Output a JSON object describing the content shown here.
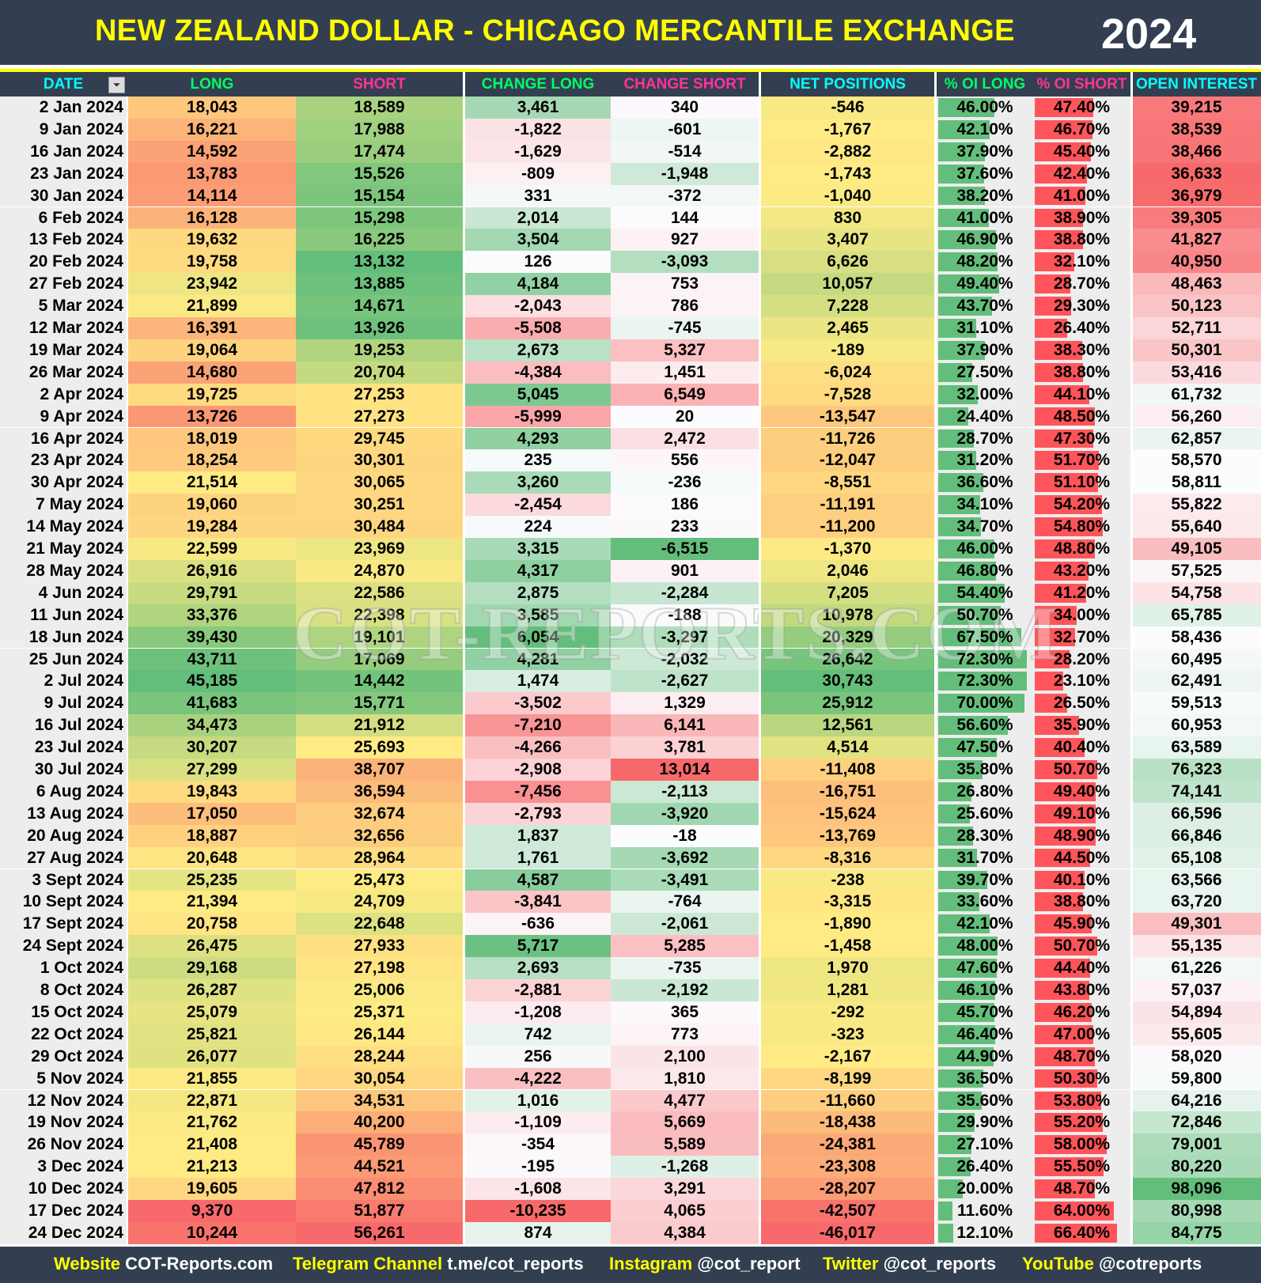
{
  "header": {
    "title": "NEW ZEALAND DOLLAR - CHICAGO MERCANTILE EXCHANGE",
    "year": "2024"
  },
  "columns": [
    {
      "label": "DATE",
      "color": "#00FFFF"
    },
    {
      "label": "LONG",
      "color": "#00FF66"
    },
    {
      "label": "SHORT",
      "color": "#FF3399"
    },
    {
      "label": "CHANGE LONG",
      "color": "#00FF66"
    },
    {
      "label": "CHANGE SHORT",
      "color": "#FF3399"
    },
    {
      "label": "NET POSITIONS",
      "color": "#00FFFF"
    },
    {
      "label": "% OI LONG",
      "color": "#00FF66"
    },
    {
      "label": "% OI SHORT",
      "color": "#FF3399"
    },
    {
      "label": "OPEN INTEREST",
      "color": "#00FFFF"
    }
  ],
  "filter_icon": "sort-filter-icon",
  "colors": {
    "red": "#F8696B",
    "yellow": "#FFEB84",
    "green": "#63BE7B",
    "white": "#FCFCFF",
    "bar_green": "#63BE7B",
    "bar_red": "#FF555A",
    "dark": "#333F50"
  },
  "rows": [
    [
      "2 Jan 2024",
      "18,043",
      "18,589",
      "3,461",
      "340",
      "-546",
      "46.00%",
      "47.40%",
      "39,215"
    ],
    [
      "9 Jan 2024",
      "16,221",
      "17,988",
      "-1,822",
      "-601",
      "-1,767",
      "42.10%",
      "46.70%",
      "38,539"
    ],
    [
      "16 Jan 2024",
      "14,592",
      "17,474",
      "-1,629",
      "-514",
      "-2,882",
      "37.90%",
      "45.40%",
      "38,466"
    ],
    [
      "23 Jan 2024",
      "13,783",
      "15,526",
      "-809",
      "-1,948",
      "-1,743",
      "37.60%",
      "42.40%",
      "36,633"
    ],
    [
      "30 Jan 2024",
      "14,114",
      "15,154",
      "331",
      "-372",
      "-1,040",
      "38.20%",
      "41.00%",
      "36,979"
    ],
    [
      "6 Feb 2024",
      "16,128",
      "15,298",
      "2,014",
      "144",
      "830",
      "41.00%",
      "38.90%",
      "39,305"
    ],
    [
      "13 Feb 2024",
      "19,632",
      "16,225",
      "3,504",
      "927",
      "3,407",
      "46.90%",
      "38.80%",
      "41,827"
    ],
    [
      "20 Feb 2024",
      "19,758",
      "13,132",
      "126",
      "-3,093",
      "6,626",
      "48.20%",
      "32.10%",
      "40,950"
    ],
    [
      "27 Feb 2024",
      "23,942",
      "13,885",
      "4,184",
      "753",
      "10,057",
      "49.40%",
      "28.70%",
      "48,463"
    ],
    [
      "5 Mar 2024",
      "21,899",
      "14,671",
      "-2,043",
      "786",
      "7,228",
      "43.70%",
      "29.30%",
      "50,123"
    ],
    [
      "12 Mar 2024",
      "16,391",
      "13,926",
      "-5,508",
      "-745",
      "2,465",
      "31.10%",
      "26.40%",
      "52,711"
    ],
    [
      "19 Mar 2024",
      "19,064",
      "19,253",
      "2,673",
      "5,327",
      "-189",
      "37.90%",
      "38.30%",
      "50,301"
    ],
    [
      "26 Mar 2024",
      "14,680",
      "20,704",
      "-4,384",
      "1,451",
      "-6,024",
      "27.50%",
      "38.80%",
      "53,416"
    ],
    [
      "2 Apr 2024",
      "19,725",
      "27,253",
      "5,045",
      "6,549",
      "-7,528",
      "32.00%",
      "44.10%",
      "61,732"
    ],
    [
      "9 Apr 2024",
      "13,726",
      "27,273",
      "-5,999",
      "20",
      "-13,547",
      "24.40%",
      "48.50%",
      "56,260"
    ],
    [
      "16 Apr 2024",
      "18,019",
      "29,745",
      "4,293",
      "2,472",
      "-11,726",
      "28.70%",
      "47.30%",
      "62,857"
    ],
    [
      "23 Apr 2024",
      "18,254",
      "30,301",
      "235",
      "556",
      "-12,047",
      "31.20%",
      "51.70%",
      "58,570"
    ],
    [
      "30 Apr 2024",
      "21,514",
      "30,065",
      "3,260",
      "-236",
      "-8,551",
      "36.60%",
      "51.10%",
      "58,811"
    ],
    [
      "7 May 2024",
      "19,060",
      "30,251",
      "-2,454",
      "186",
      "-11,191",
      "34.10%",
      "54.20%",
      "55,822"
    ],
    [
      "14 May 2024",
      "19,284",
      "30,484",
      "224",
      "233",
      "-11,200",
      "34.70%",
      "54.80%",
      "55,640"
    ],
    [
      "21 May 2024",
      "22,599",
      "23,969",
      "3,315",
      "-6,515",
      "-1,370",
      "46.00%",
      "48.80%",
      "49,105"
    ],
    [
      "28 May 2024",
      "26,916",
      "24,870",
      "4,317",
      "901",
      "2,046",
      "46.80%",
      "43.20%",
      "57,525"
    ],
    [
      "4 Jun 2024",
      "29,791",
      "22,586",
      "2,875",
      "-2,284",
      "7,205",
      "54.40%",
      "41.20%",
      "54,758"
    ],
    [
      "11 Jun 2024",
      "33,376",
      "22,398",
      "3,585",
      "-188",
      "10,978",
      "50.70%",
      "34.00%",
      "65,785"
    ],
    [
      "18 Jun 2024",
      "39,430",
      "19,101",
      "6,054",
      "-3,297",
      "20,329",
      "67.50%",
      "32.70%",
      "58,436"
    ],
    [
      "25 Jun 2024",
      "43,711",
      "17,069",
      "4,281",
      "-2,032",
      "26,642",
      "72.30%",
      "28.20%",
      "60,495"
    ],
    [
      "2 Jul 2024",
      "45,185",
      "14,442",
      "1,474",
      "-2,627",
      "30,743",
      "72.30%",
      "23.10%",
      "62,491"
    ],
    [
      "9 Jul 2024",
      "41,683",
      "15,771",
      "-3,502",
      "1,329",
      "25,912",
      "70.00%",
      "26.50%",
      "59,513"
    ],
    [
      "16 Jul 2024",
      "34,473",
      "21,912",
      "-7,210",
      "6,141",
      "12,561",
      "56.60%",
      "35.90%",
      "60,953"
    ],
    [
      "23 Jul 2024",
      "30,207",
      "25,693",
      "-4,266",
      "3,781",
      "4,514",
      "47.50%",
      "40.40%",
      "63,589"
    ],
    [
      "30 Jul 2024",
      "27,299",
      "38,707",
      "-2,908",
      "13,014",
      "-11,408",
      "35.80%",
      "50.70%",
      "76,323"
    ],
    [
      "6 Aug 2024",
      "19,843",
      "36,594",
      "-7,456",
      "-2,113",
      "-16,751",
      "26.80%",
      "49.40%",
      "74,141"
    ],
    [
      "13 Aug 2024",
      "17,050",
      "32,674",
      "-2,793",
      "-3,920",
      "-15,624",
      "25.60%",
      "49.10%",
      "66,596"
    ],
    [
      "20 Aug 2024",
      "18,887",
      "32,656",
      "1,837",
      "-18",
      "-13,769",
      "28.30%",
      "48.90%",
      "66,846"
    ],
    [
      "27 Aug 2024",
      "20,648",
      "28,964",
      "1,761",
      "-3,692",
      "-8,316",
      "31.70%",
      "44.50%",
      "65,108"
    ],
    [
      "3 Sept 2024",
      "25,235",
      "25,473",
      "4,587",
      "-3,491",
      "-238",
      "39.70%",
      "40.10%",
      "63,566"
    ],
    [
      "10 Sept 2024",
      "21,394",
      "24,709",
      "-3,841",
      "-764",
      "-3,315",
      "33.60%",
      "38.80%",
      "63,720"
    ],
    [
      "17 Sept 2024",
      "20,758",
      "22,648",
      "-636",
      "-2,061",
      "-1,890",
      "42.10%",
      "45.90%",
      "49,301"
    ],
    [
      "24 Sept 2024",
      "26,475",
      "27,933",
      "5,717",
      "5,285",
      "-1,458",
      "48.00%",
      "50.70%",
      "55,135"
    ],
    [
      "1 Oct 2024",
      "29,168",
      "27,198",
      "2,693",
      "-735",
      "1,970",
      "47.60%",
      "44.40%",
      "61,226"
    ],
    [
      "8 Oct 2024",
      "26,287",
      "25,006",
      "-2,881",
      "-2,192",
      "1,281",
      "46.10%",
      "43.80%",
      "57,037"
    ],
    [
      "15 Oct 2024",
      "25,079",
      "25,371",
      "-1,208",
      "365",
      "-292",
      "45.70%",
      "46.20%",
      "54,894"
    ],
    [
      "22 Oct 2024",
      "25,821",
      "26,144",
      "742",
      "773",
      "-323",
      "46.40%",
      "47.00%",
      "55,605"
    ],
    [
      "29 Oct 2024",
      "26,077",
      "28,244",
      "256",
      "2,100",
      "-2,167",
      "44.90%",
      "48.70%",
      "58,020"
    ],
    [
      "5 Nov 2024",
      "21,855",
      "30,054",
      "-4,222",
      "1,810",
      "-8,199",
      "36.50%",
      "50.30%",
      "59,800"
    ],
    [
      "12 Nov 2024",
      "22,871",
      "34,531",
      "1,016",
      "4,477",
      "-11,660",
      "35.60%",
      "53.80%",
      "64,216"
    ],
    [
      "19 Nov 2024",
      "21,762",
      "40,200",
      "-1,109",
      "5,669",
      "-18,438",
      "29.90%",
      "55.20%",
      "72,846"
    ],
    [
      "26 Nov 2024",
      "21,408",
      "45,789",
      "-354",
      "5,589",
      "-24,381",
      "27.10%",
      "58.00%",
      "79,001"
    ],
    [
      "3 Dec 2024",
      "21,213",
      "44,521",
      "-195",
      "-1,268",
      "-23,308",
      "26.40%",
      "55.50%",
      "80,220"
    ],
    [
      "10 Dec 2024",
      "19,605",
      "47,812",
      "-1,608",
      "3,291",
      "-28,207",
      "20.00%",
      "48.70%",
      "98,096"
    ],
    [
      "17 Dec 2024",
      "9,370",
      "51,877",
      "-10,235",
      "4,065",
      "-42,507",
      "11.60%",
      "64.00%",
      "80,998"
    ],
    [
      "24 Dec 2024",
      "10,244",
      "56,261",
      "874",
      "4,384",
      "-46,017",
      "12.10%",
      "66.40%",
      "84,775"
    ]
  ],
  "watermark": "COT-REPORTS.COM",
  "footer": [
    {
      "label": "Website",
      "value": "COT-Reports.com"
    },
    {
      "label": "Telegram Channel",
      "value": "t.me/cot_reports"
    },
    {
      "label": "Instagram",
      "value": "@cot_report"
    },
    {
      "label": "Twitter",
      "value": "@cot_reports"
    },
    {
      "label": "YouTube",
      "value": "@cotreports"
    }
  ]
}
